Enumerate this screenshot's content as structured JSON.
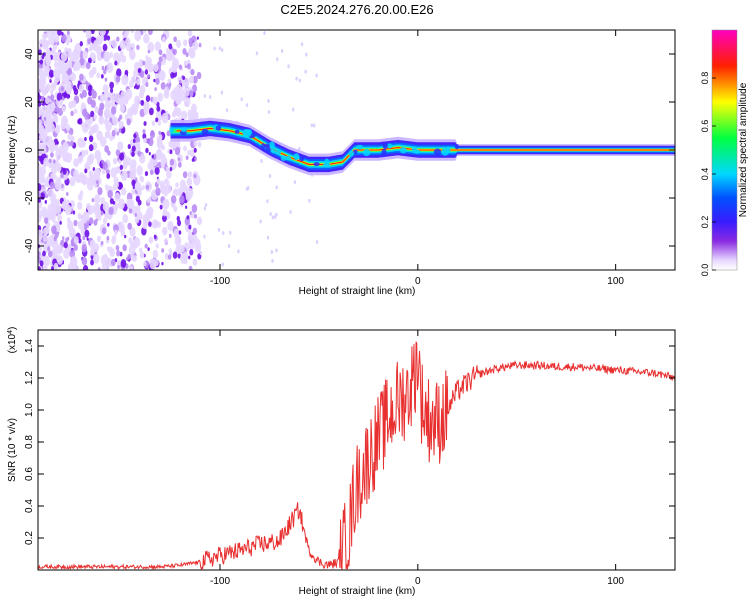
{
  "figure_title": "C2E5.2024.276.20.00.E26",
  "chart_data": [
    {
      "type": "heatmap",
      "title": "",
      "xlabel": "Height of straight line (km)",
      "ylabel": "Frequency (Hz)",
      "xlim": [
        -192,
        130
      ],
      "ylim": [
        -50,
        50
      ],
      "x_ticks": [
        -100,
        0,
        100
      ],
      "x_tick_labels": [
        "-100",
        "0",
        "100"
      ],
      "y_ticks": [
        -40,
        -20,
        0,
        20,
        40
      ],
      "y_tick_labels": [
        "-40",
        "-20",
        "0",
        "20",
        "40"
      ],
      "colorbar": {
        "label": "Normalized spectral amplitude",
        "range": [
          0,
          1
        ],
        "ticks": [
          0.0,
          0.2,
          0.4,
          0.6,
          0.8
        ],
        "tick_labels": [
          "0.0",
          "0.2",
          "0.4",
          "0.6",
          "0.8"
        ],
        "colormap": "rainbow (white-purple-blue-cyan-green-yellow-red-magenta)"
      },
      "ridge": {
        "description": "dominant frequency track",
        "x": [
          -125,
          -115,
          -105,
          -95,
          -85,
          -75,
          -65,
          -55,
          -45,
          -38,
          -32,
          -20,
          -10,
          0,
          20,
          60,
          130
        ],
        "y": [
          8,
          8,
          9,
          8,
          6,
          1,
          -3,
          -6,
          -6,
          -5,
          0,
          0,
          1,
          0,
          0,
          0,
          0
        ]
      },
      "noise_region_x": [
        -192,
        -110
      ],
      "grid": false
    },
    {
      "type": "line",
      "title": "",
      "xlabel": "Height of straight line (km)",
      "ylabel": "SNR (10 * v/v)",
      "y_multiplier_label": "(x10",
      "y_multiplier_exp": "4",
      "y_multiplier_close": ")",
      "xlim": [
        -192,
        130
      ],
      "ylim": [
        0,
        1.5
      ],
      "x_ticks": [
        -100,
        0,
        100
      ],
      "x_tick_labels": [
        "-100",
        "0",
        "100"
      ],
      "y_ticks": [
        0.2,
        0.4,
        0.6,
        0.8,
        1.0,
        1.2,
        1.4
      ],
      "y_tick_labels": [
        "0.2",
        "0.4",
        "0.6",
        "0.8",
        "1.0",
        "1.2",
        "1.4"
      ],
      "line_color": "#e83030",
      "series": [
        {
          "values_units": "x10^4",
          "x": [
            -192,
            -170,
            -150,
            -130,
            -120,
            -110,
            -100,
            -90,
            -80,
            -70,
            -65,
            -60,
            -57,
            -55,
            -50,
            -45,
            -40,
            -35,
            -32,
            -30,
            -25,
            -20,
            -15,
            -10,
            -5,
            -2,
            0,
            2,
            5,
            10,
            15,
            20,
            30,
            40,
            50,
            60,
            70,
            80,
            90,
            100,
            110,
            120,
            130
          ],
          "y": [
            0.02,
            0.02,
            0.02,
            0.02,
            0.03,
            0.05,
            0.09,
            0.12,
            0.16,
            0.18,
            0.28,
            0.38,
            0.22,
            0.12,
            0.05,
            0.03,
            0.05,
            0.22,
            0.48,
            0.55,
            0.7,
            0.82,
            0.95,
            1.05,
            1.1,
            1.2,
            1.35,
            1.05,
            0.95,
            0.92,
            1.0,
            1.12,
            1.22,
            1.26,
            1.28,
            1.28,
            1.27,
            1.27,
            1.26,
            1.25,
            1.24,
            1.23,
            1.2
          ]
        }
      ],
      "grid": false
    }
  ]
}
